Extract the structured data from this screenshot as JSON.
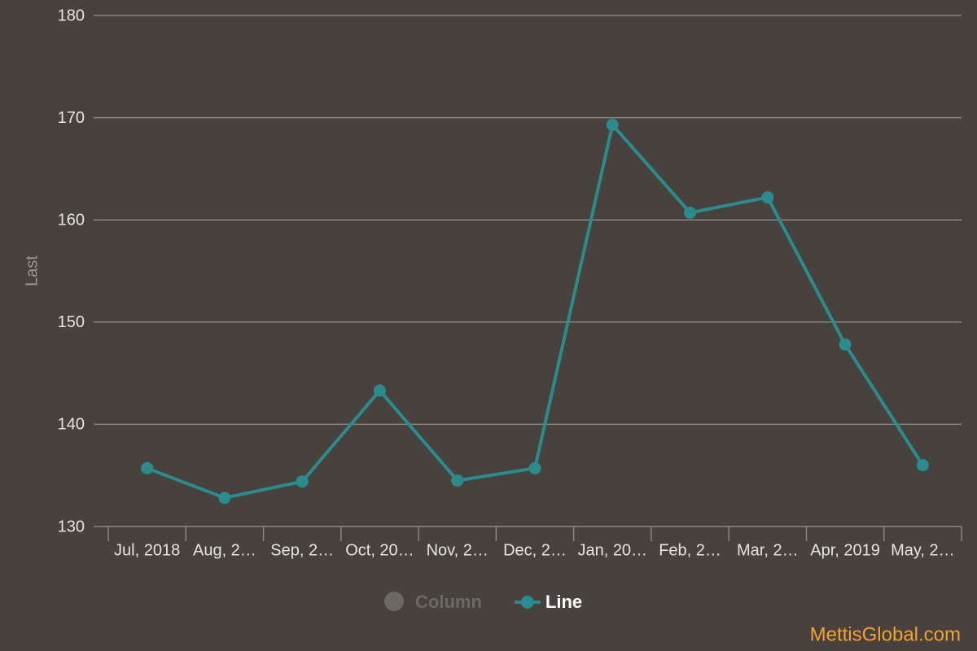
{
  "chart_data": {
    "type": "line",
    "y_axis_label": "Last",
    "categories": [
      "Jul, 2018",
      "Aug, 2…",
      "Sep, 2…",
      "Oct, 20…",
      "Nov, 2…",
      "Dec, 2…",
      "Jan, 20…",
      "Feb, 2…",
      "Mar, 2…",
      "Apr, 2019",
      "May, 2…"
    ],
    "series": [
      {
        "name": "Column",
        "color": "#6b6866",
        "hidden": true
      },
      {
        "name": "Line",
        "color": "#2c8b8d",
        "values": [
          135.7,
          132.8,
          134.4,
          143.3,
          134.5,
          135.7,
          169.3,
          160.7,
          162.2,
          147.8,
          136.0
        ]
      }
    ],
    "ylim": [
      130,
      180
    ],
    "yticks": [
      130,
      140,
      150,
      160,
      170,
      180
    ],
    "grid": true,
    "legend": "bottom",
    "credit": "MettisGlobal.com"
  }
}
